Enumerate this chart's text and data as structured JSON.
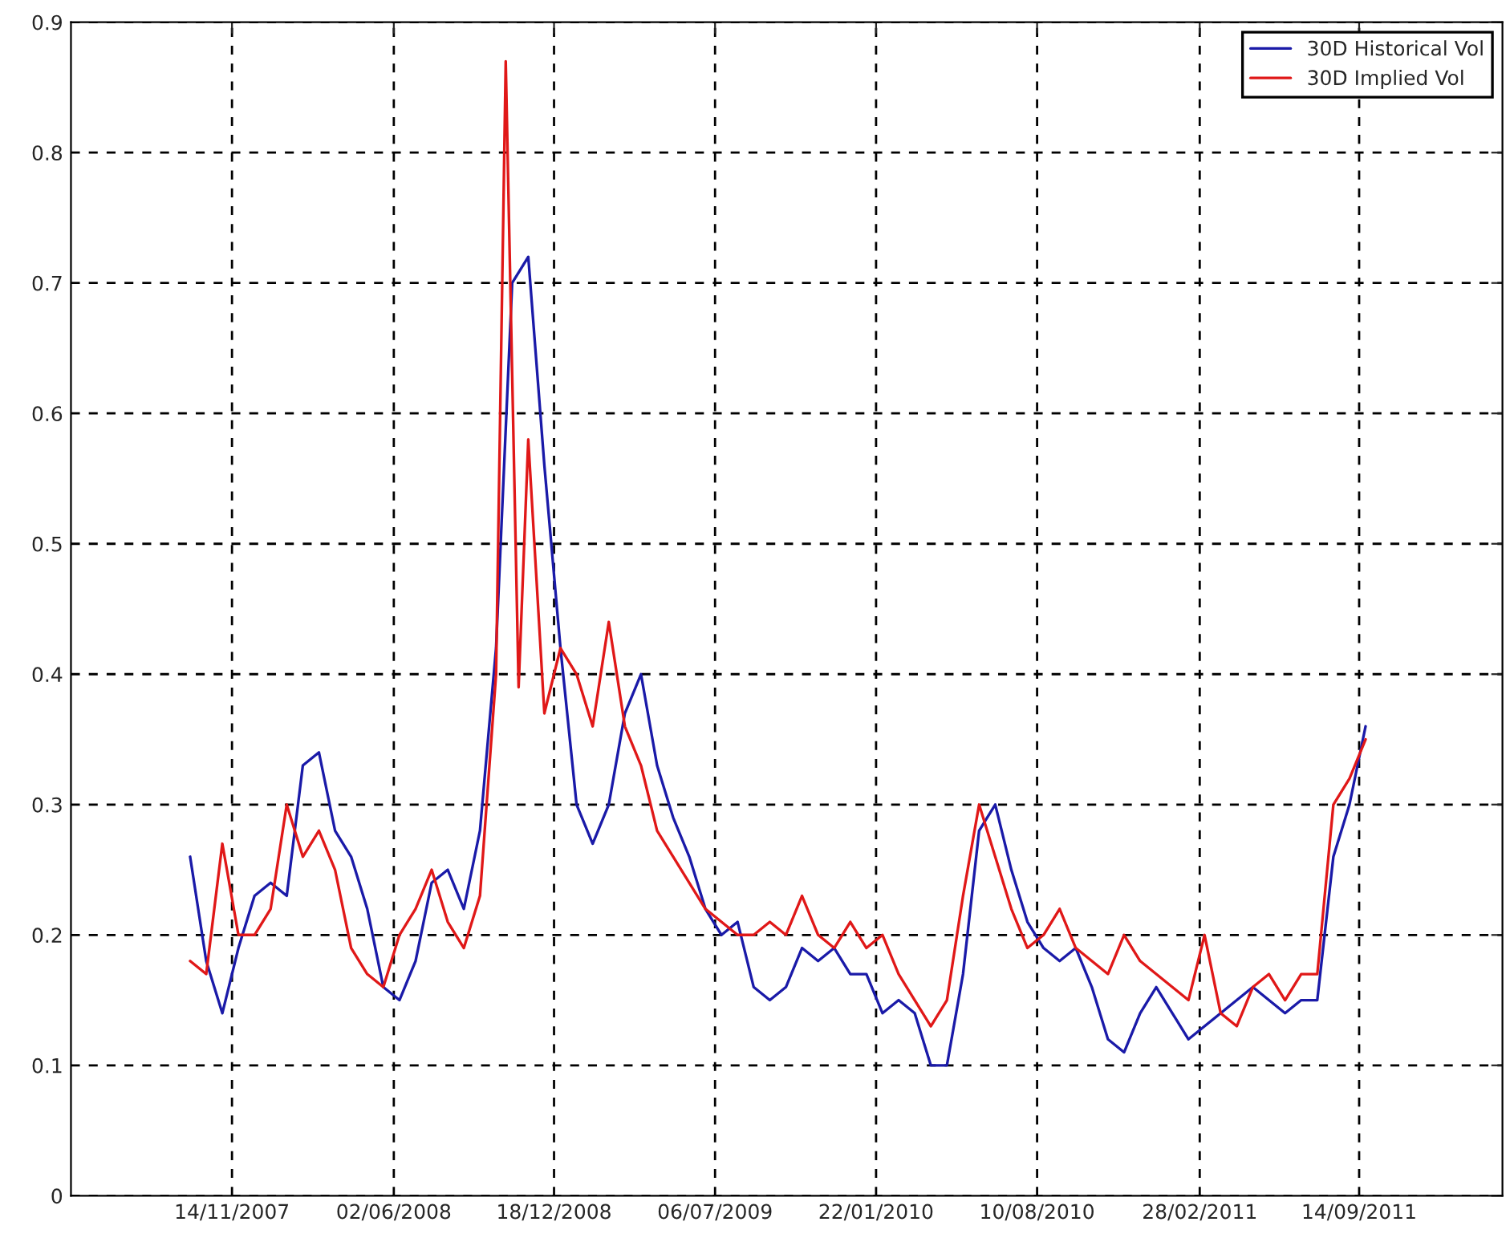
{
  "chart_data": {
    "type": "line",
    "xlim": [
      "2007-04-28",
      "2012-03-10"
    ],
    "ylim": [
      0,
      0.9
    ],
    "xticks": [
      {
        "value": "2007-11-14",
        "label": "14/11/2007"
      },
      {
        "value": "2008-06-02",
        "label": "02/06/2008"
      },
      {
        "value": "2008-12-18",
        "label": "18/12/2008"
      },
      {
        "value": "2009-07-06",
        "label": "06/07/2009"
      },
      {
        "value": "2010-01-22",
        "label": "22/01/2010"
      },
      {
        "value": "2010-08-10",
        "label": "10/08/2010"
      },
      {
        "value": "2011-02-28",
        "label": "28/02/2011"
      },
      {
        "value": "2011-09-14",
        "label": "14/09/2011"
      }
    ],
    "yticks": [
      0,
      0.1,
      0.2,
      0.3,
      0.4,
      0.5,
      0.6,
      0.7,
      0.8,
      0.9
    ],
    "grid": true,
    "legend": "top right",
    "line_style": "solid",
    "marker": "none",
    "series": [
      {
        "name": "30D Historical Vol",
        "color": "#1a1aa8",
        "x": [
          "2007-09-23",
          "2007-10-13",
          "2007-11-02",
          "2007-11-22",
          "2007-12-12",
          "2008-01-01",
          "2008-01-21",
          "2008-02-10",
          "2008-03-01",
          "2008-03-21",
          "2008-04-10",
          "2008-04-30",
          "2008-05-20",
          "2008-06-09",
          "2008-06-29",
          "2008-07-19",
          "2008-08-08",
          "2008-08-28",
          "2008-09-17",
          "2008-10-07",
          "2008-10-27",
          "2008-11-16",
          "2008-12-06",
          "2008-12-26",
          "2009-01-15",
          "2009-02-04",
          "2009-02-24",
          "2009-03-16",
          "2009-04-05",
          "2009-04-25",
          "2009-05-15",
          "2009-06-04",
          "2009-06-24",
          "2009-07-14",
          "2009-08-03",
          "2009-08-23",
          "2009-09-12",
          "2009-10-02",
          "2009-10-22",
          "2009-11-11",
          "2009-12-01",
          "2009-12-21",
          "2010-01-10",
          "2010-01-30",
          "2010-02-19",
          "2010-03-11",
          "2010-03-31",
          "2010-04-20",
          "2010-05-10",
          "2010-05-30",
          "2010-06-19",
          "2010-07-09",
          "2010-07-29",
          "2010-08-18",
          "2010-09-07",
          "2010-09-27",
          "2010-10-17",
          "2010-11-06",
          "2010-11-26",
          "2010-12-16",
          "2011-01-05",
          "2011-01-25",
          "2011-02-14",
          "2011-03-06",
          "2011-03-26",
          "2011-04-15",
          "2011-05-05",
          "2011-05-25",
          "2011-06-14",
          "2011-07-04",
          "2011-07-24",
          "2011-08-13",
          "2011-09-02",
          "2011-09-22"
        ],
        "values": [
          0.26,
          0.18,
          0.14,
          0.19,
          0.23,
          0.24,
          0.23,
          0.33,
          0.34,
          0.28,
          0.26,
          0.22,
          0.16,
          0.15,
          0.18,
          0.24,
          0.25,
          0.22,
          0.28,
          0.42,
          0.7,
          0.72,
          0.56,
          0.42,
          0.3,
          0.27,
          0.3,
          0.37,
          0.4,
          0.33,
          0.29,
          0.26,
          0.22,
          0.2,
          0.21,
          0.16,
          0.15,
          0.16,
          0.19,
          0.18,
          0.19,
          0.17,
          0.17,
          0.14,
          0.15,
          0.14,
          0.1,
          0.1,
          0.17,
          0.28,
          0.3,
          0.25,
          0.21,
          0.19,
          0.18,
          0.19,
          0.16,
          0.12,
          0.11,
          0.14,
          0.16,
          0.14,
          0.12,
          0.13,
          0.14,
          0.15,
          0.16,
          0.15,
          0.14,
          0.15,
          0.15,
          0.26,
          0.3,
          0.36
        ]
      },
      {
        "name": "30D Implied Vol",
        "color": "#e01818",
        "x": [
          "2007-09-23",
          "2007-10-13",
          "2007-11-02",
          "2007-11-22",
          "2007-12-12",
          "2008-01-01",
          "2008-01-21",
          "2008-02-10",
          "2008-03-01",
          "2008-03-21",
          "2008-04-10",
          "2008-04-30",
          "2008-05-20",
          "2008-06-09",
          "2008-06-29",
          "2008-07-19",
          "2008-08-08",
          "2008-08-28",
          "2008-09-17",
          "2008-10-07",
          "2008-10-19",
          "2008-11-04",
          "2008-11-16",
          "2008-12-06",
          "2008-12-26",
          "2009-01-15",
          "2009-02-04",
          "2009-02-24",
          "2009-03-16",
          "2009-04-05",
          "2009-04-25",
          "2009-05-15",
          "2009-06-04",
          "2009-06-24",
          "2009-07-14",
          "2009-08-03",
          "2009-08-23",
          "2009-09-12",
          "2009-10-02",
          "2009-10-22",
          "2009-11-11",
          "2009-12-01",
          "2009-12-21",
          "2010-01-10",
          "2010-01-30",
          "2010-02-19",
          "2010-03-11",
          "2010-03-31",
          "2010-04-20",
          "2010-05-10",
          "2010-05-30",
          "2010-06-19",
          "2010-07-09",
          "2010-07-29",
          "2010-08-18",
          "2010-09-07",
          "2010-09-27",
          "2010-10-17",
          "2010-11-06",
          "2010-11-26",
          "2010-12-16",
          "2011-01-05",
          "2011-01-25",
          "2011-02-14",
          "2011-03-06",
          "2011-03-26",
          "2011-04-15",
          "2011-05-05",
          "2011-05-25",
          "2011-06-14",
          "2011-07-04",
          "2011-07-24",
          "2011-08-13",
          "2011-09-02",
          "2011-09-22"
        ],
        "values": [
          0.18,
          0.17,
          0.27,
          0.2,
          0.2,
          0.22,
          0.3,
          0.26,
          0.28,
          0.25,
          0.19,
          0.17,
          0.16,
          0.2,
          0.22,
          0.25,
          0.21,
          0.19,
          0.23,
          0.4,
          0.87,
          0.39,
          0.58,
          0.37,
          0.42,
          0.4,
          0.36,
          0.44,
          0.36,
          0.33,
          0.28,
          0.26,
          0.24,
          0.22,
          0.21,
          0.2,
          0.2,
          0.21,
          0.2,
          0.23,
          0.2,
          0.19,
          0.21,
          0.19,
          0.2,
          0.17,
          0.15,
          0.13,
          0.15,
          0.23,
          0.3,
          0.26,
          0.22,
          0.19,
          0.2,
          0.22,
          0.19,
          0.18,
          0.17,
          0.2,
          0.18,
          0.17,
          0.16,
          0.15,
          0.2,
          0.14,
          0.13,
          0.16,
          0.17,
          0.15,
          0.17,
          0.17,
          0.3,
          0.32,
          0.35
        ]
      }
    ]
  }
}
